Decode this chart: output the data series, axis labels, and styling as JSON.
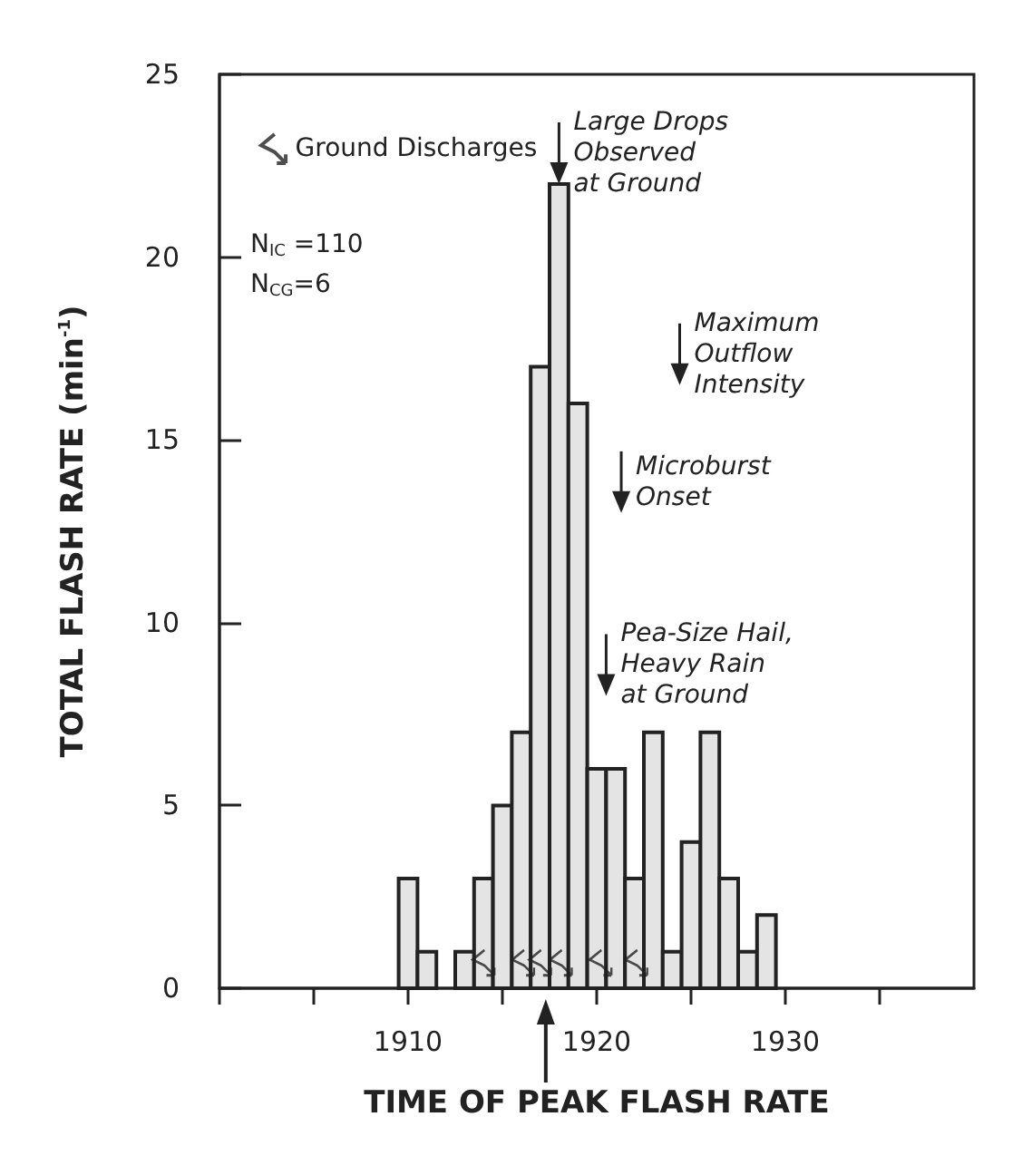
{
  "chart_data": {
    "type": "histogram",
    "xlabel": "TIME OF PEAK FLASH RATE",
    "ylabel": "TOTAL FLASH RATE (min$^{-1}$)",
    "bins": [
      1909.5,
      1910.5,
      1911.5,
      1912.5,
      1913.5,
      1914.5,
      1915.5,
      1916.5,
      1917.5,
      1918.5,
      1919.5,
      1920.5,
      1921.5,
      1922.5,
      1923.5,
      1924.5,
      1925.5,
      1926.5,
      1927.5,
      1928.5,
      1929.5
    ],
    "values": [
      3,
      1,
      0,
      1,
      3,
      5,
      7,
      17,
      22,
      16,
      6,
      6,
      3,
      7,
      1,
      4,
      7,
      3,
      1,
      2
    ],
    "color": "#e4e4e4",
    "series": [
      {
        "type": "scatter",
        "name": "Ground Discharges",
        "color": "#222222",
        "x": [
          1914.0,
          1916.1,
          1917.0,
          1918.1,
          1920.2,
          1922.1
        ],
        "values": [
          0.7,
          0.7,
          0.7,
          0.7,
          0.7,
          0.7
        ]
      }
    ],
    "xlim": [
      1900,
      1940
    ],
    "ylim": [
      0,
      25
    ],
    "xticks": [
      {
        "value": 1900,
        "label": null
      },
      {
        "value": 1905,
        "label": null
      },
      1910,
      {
        "value": 1915,
        "label": null
      },
      1920,
      {
        "value": 1925,
        "label": null
      },
      1930,
      {
        "value": 1935,
        "label": null
      }
    ],
    "yticks": [
      0,
      5,
      10,
      15,
      20,
      25
    ],
    "grid": false,
    "legend": "top left",
    "annotations": [
      {
        "text": "Large Drops\nObserved\nat Ground",
        "x": 1918,
        "y": 22
      },
      "Maximum\nOutflow\nIntensity",
      "Microburst\nOnset",
      "Pea-Size Hail,\nHeavy Rain\nat Ground",
      "N$_{IC}$ =110",
      "N$_{CG}$=6"
    ]
  }
}
